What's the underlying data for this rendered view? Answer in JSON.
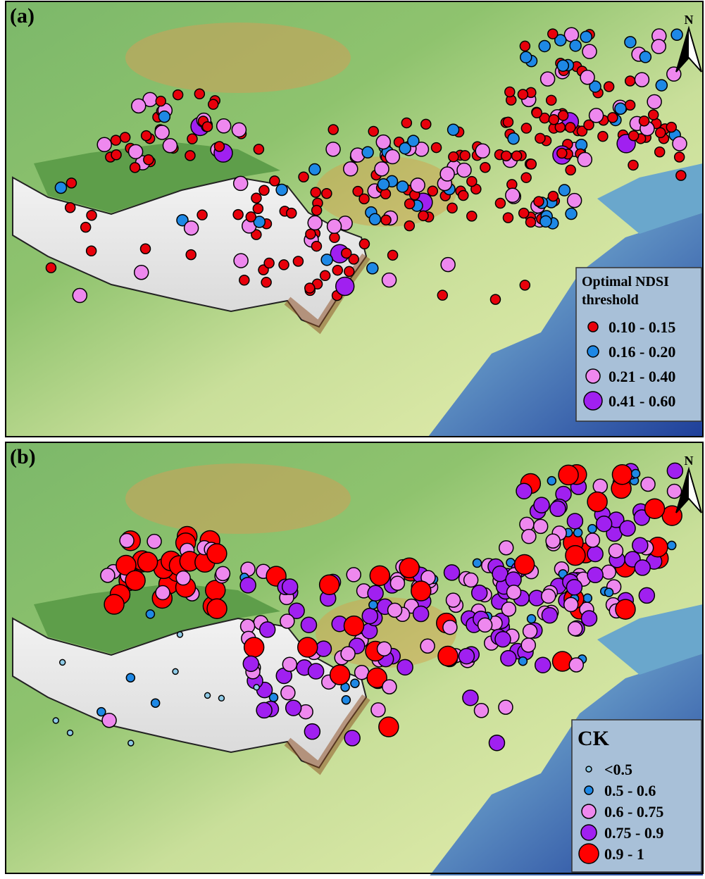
{
  "panels": [
    {
      "label": "(a)",
      "north": "N",
      "legend": {
        "title": [
          "Optimal NDSI",
          "threshold"
        ],
        "items": [
          {
            "label": "0.10 - 0.15",
            "color": "#e8000b"
          },
          {
            "label": "0.16 - 0.20",
            "color": "#1e88e5"
          },
          {
            "label": "0.21 - 0.40",
            "color": "#ee88ee"
          },
          {
            "label": "0.41 - 0.60",
            "color": "#a020f0"
          }
        ]
      }
    },
    {
      "label": "(b)",
      "north": "N",
      "legend": {
        "title": [
          "CK"
        ],
        "items": [
          {
            "label": "<0.5",
            "color": "#8ecae6"
          },
          {
            "label": "0.5 - 0.6",
            "color": "#1e88e5"
          },
          {
            "label": "0.6 - 0.75",
            "color": "#ee88ee"
          },
          {
            "label": "0.75 - 0.9",
            "color": "#a020f0"
          },
          {
            "label": "0.9 - 1",
            "color": "#ff0000"
          }
        ]
      }
    }
  ]
}
